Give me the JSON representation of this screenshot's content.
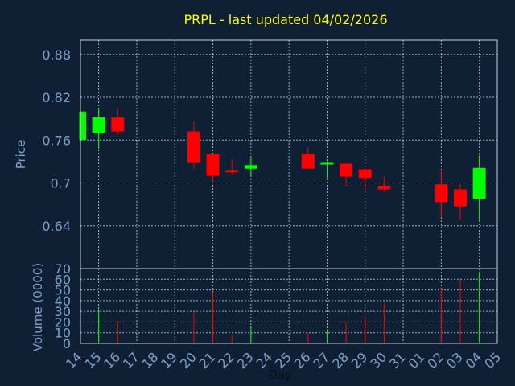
{
  "chart_data": {
    "type": "candlestick",
    "title": "PRPL - last updated 04/02/2026",
    "price_axis": {
      "label": "Price",
      "ticks": [
        "0.88",
        "0.82",
        "0.76",
        "0.7",
        "0.64"
      ],
      "tick_values": [
        0.88,
        0.82,
        0.76,
        0.7,
        0.64
      ],
      "range": [
        0.58,
        0.9
      ]
    },
    "volume_axis": {
      "label": "Volume (0000)",
      "ticks": [
        "70",
        "60",
        "50",
        "40",
        "30",
        "20",
        "10",
        "0"
      ],
      "tick_values": [
        70,
        60,
        50,
        40,
        30,
        20,
        10,
        0
      ],
      "range": [
        0,
        70
      ]
    },
    "xlabel": "Day",
    "x_ticks": [
      "14",
      "15",
      "16",
      "17",
      "18",
      "19",
      "20",
      "21",
      "22",
      "23",
      "24",
      "25",
      "26",
      "27",
      "28",
      "29",
      "30",
      "31",
      "01",
      "02",
      "03",
      "04",
      "05"
    ],
    "up_color": "#00ff00",
    "down_color": "#ff0000",
    "candles": [
      {
        "day": "14",
        "open": 0.76,
        "high": 0.8,
        "low": 0.76,
        "close": 0.8
      },
      {
        "day": "15",
        "open": 0.77,
        "high": 0.805,
        "low": 0.748,
        "close": 0.792
      },
      {
        "day": "16",
        "open": 0.792,
        "high": 0.805,
        "low": 0.768,
        "close": 0.772
      },
      {
        "day": "20",
        "open": 0.772,
        "high": 0.786,
        "low": 0.72,
        "close": 0.728
      },
      {
        "day": "21",
        "open": 0.74,
        "high": 0.74,
        "low": 0.7,
        "close": 0.71
      },
      {
        "day": "22",
        "open": 0.716,
        "high": 0.733,
        "low": 0.712,
        "close": 0.715
      },
      {
        "day": "23",
        "open": 0.72,
        "high": 0.737,
        "low": 0.71,
        "close": 0.725
      },
      {
        "day": "26",
        "open": 0.74,
        "high": 0.75,
        "low": 0.72,
        "close": 0.72
      },
      {
        "day": "27",
        "open": 0.725,
        "high": 0.73,
        "low": 0.707,
        "close": 0.727
      },
      {
        "day": "28",
        "open": 0.727,
        "high": 0.727,
        "low": 0.696,
        "close": 0.709
      },
      {
        "day": "29",
        "open": 0.719,
        "high": 0.719,
        "low": 0.692,
        "close": 0.707
      },
      {
        "day": "30",
        "open": 0.696,
        "high": 0.709,
        "low": 0.688,
        "close": 0.691
      },
      {
        "day": "02",
        "open": 0.698,
        "high": 0.718,
        "low": 0.652,
        "close": 0.673
      },
      {
        "day": "03",
        "open": 0.691,
        "high": 0.699,
        "low": 0.648,
        "close": 0.667
      },
      {
        "day": "04",
        "open": 0.678,
        "high": 0.739,
        "low": 0.648,
        "close": 0.721
      }
    ],
    "volume": [
      {
        "day": "15",
        "value": 32,
        "dir": "up"
      },
      {
        "day": "16",
        "value": 21,
        "dir": "down"
      },
      {
        "day": "20",
        "value": 29,
        "dir": "down"
      },
      {
        "day": "21",
        "value": 48,
        "dir": "down"
      },
      {
        "day": "22",
        "value": 8,
        "dir": "down"
      },
      {
        "day": "23",
        "value": 16,
        "dir": "up"
      },
      {
        "day": "26",
        "value": 10,
        "dir": "down"
      },
      {
        "day": "27",
        "value": 13,
        "dir": "up"
      },
      {
        "day": "28",
        "value": 20,
        "dir": "down"
      },
      {
        "day": "29",
        "value": 25,
        "dir": "down"
      },
      {
        "day": "30",
        "value": 37,
        "dir": "down"
      },
      {
        "day": "02",
        "value": 51,
        "dir": "down"
      },
      {
        "day": "03",
        "value": 60,
        "dir": "down"
      },
      {
        "day": "04",
        "value": 67,
        "dir": "up"
      }
    ]
  }
}
